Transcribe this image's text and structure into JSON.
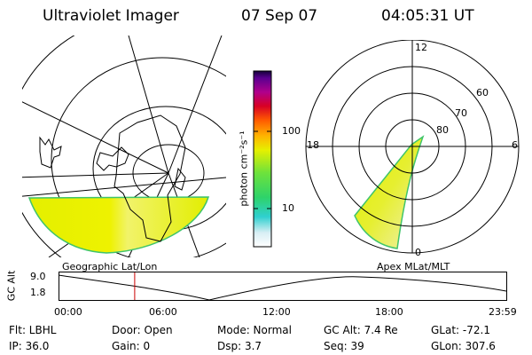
{
  "header": {
    "instrument": "Ultraviolet Imager",
    "date": "07 Sep 07",
    "time": "04:05:31 UT"
  },
  "colorbar": {
    "unit_label": "photon cm⁻²s⁻¹",
    "tick_100": "100",
    "tick_10": "10"
  },
  "polar_labels": {
    "mlt_12": "12",
    "mlt_18": "18",
    "mlt_6": "6",
    "mlt_0": "0",
    "lat_60": "60",
    "lat_70": "70",
    "lat_80": "80"
  },
  "panel_labels": {
    "left": "Geographic Lat/Lon",
    "right": "Apex  MLat/MLT"
  },
  "timeline": {
    "ylabel": "GC Alt",
    "y_top": "9.0",
    "y_bottom": "1.8",
    "x_ticks": [
      "00:00",
      "06:00",
      "12:00",
      "18:00",
      "23:59"
    ],
    "current_time_fraction": 0.17
  },
  "info": {
    "flt": "Flt: LBHL",
    "ip": "IP: 36.0",
    "door": "Door:  Open",
    "gain": "Gain:   0",
    "mode": "Mode:  Normal",
    "dsp": "Dsp:     3.7",
    "gcalt": "GC Alt:  7.4 Re",
    "seq": "Seq:  39",
    "glat": "GLat:  -72.1",
    "glon": "GLon:  307.6"
  }
}
